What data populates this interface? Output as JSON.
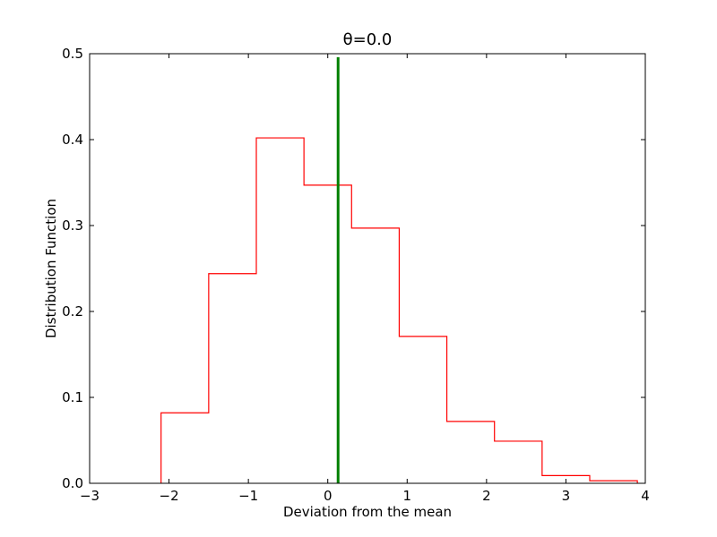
{
  "chart_data": {
    "type": "step-histogram",
    "title": "θ=0.0",
    "xlabel": "Deviation from the mean",
    "ylabel": "Distribution Function",
    "xlim": [
      -3,
      4
    ],
    "ylim": [
      0,
      0.5
    ],
    "xticks": [
      -3,
      -2,
      -1,
      0,
      1,
      2,
      3,
      4
    ],
    "xtick_labels": [
      "−3",
      "−2",
      "−1",
      "0",
      "1",
      "2",
      "3",
      "4"
    ],
    "yticks": [
      0,
      0.1,
      0.2,
      0.3,
      0.4,
      0.5
    ],
    "ytick_labels": [
      "0.0",
      "0.1",
      "0.2",
      "0.3",
      "0.4",
      "0.5"
    ],
    "grid": false,
    "series": [
      {
        "color": "#ff0000",
        "bin_edges": [
          -2.1,
          -1.5,
          -0.9,
          -0.3,
          0.3,
          0.9,
          1.5,
          2.1,
          2.7,
          3.3,
          3.9
        ],
        "values": [
          0.082,
          0.244,
          0.402,
          0.347,
          0.297,
          0.171,
          0.072,
          0.049,
          0.009,
          0.003
        ]
      }
    ],
    "vertical_line": {
      "x": 0.13,
      "color": "#008000",
      "y_top": 0.496
    }
  }
}
